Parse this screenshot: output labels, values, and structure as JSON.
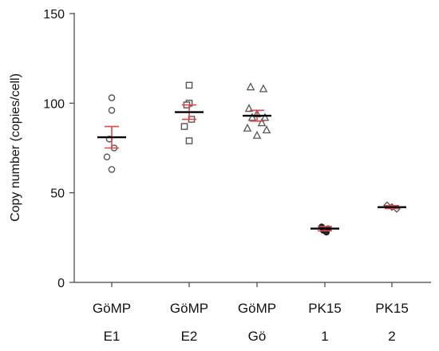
{
  "chart_data": {
    "type": "scatter",
    "ylabel": "Copy number (copies/cell)",
    "xlabel": "",
    "ylim": [
      0,
      150
    ],
    "yticks": [
      0,
      50,
      100,
      150
    ],
    "grid": false,
    "mean_line_color": "#000000",
    "error_bar_color": "#e0474c",
    "point_color": "#555555",
    "groups": [
      {
        "label_lines": [
          "GöMP",
          "E1"
        ],
        "marker": "circle",
        "mean": 81,
        "error": 6,
        "values": [
          103,
          96,
          80,
          75,
          70,
          63
        ]
      },
      {
        "label_lines": [
          "GöMP",
          "E2"
        ],
        "marker": "square",
        "mean": 95,
        "error": 4,
        "values": [
          110,
          100,
          99,
          91,
          87,
          79
        ]
      },
      {
        "label_lines": [
          "GöMP",
          "Gö"
        ],
        "marker": "triangle",
        "mean": 93,
        "error": 3,
        "values": [
          109,
          108,
          97,
          94,
          92,
          92,
          89,
          86,
          85,
          82
        ]
      },
      {
        "label_lines": [
          "PK15",
          "1"
        ],
        "marker": "filled-circle",
        "mean": 30,
        "error": 1.2,
        "values": [
          31,
          30,
          29,
          28
        ]
      },
      {
        "label_lines": [
          "PK15",
          "2"
        ],
        "marker": "diamond",
        "mean": 42,
        "error": 0.8,
        "values": [
          43,
          42,
          41
        ]
      }
    ]
  }
}
